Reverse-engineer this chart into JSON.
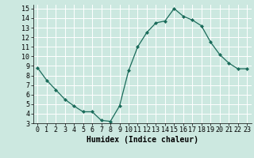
{
  "x": [
    0,
    1,
    2,
    3,
    4,
    5,
    6,
    7,
    8,
    9,
    10,
    11,
    12,
    13,
    14,
    15,
    16,
    17,
    18,
    19,
    20,
    21,
    22,
    23
  ],
  "y": [
    8.8,
    7.5,
    6.5,
    5.5,
    4.8,
    4.2,
    4.2,
    3.3,
    3.2,
    4.8,
    8.5,
    11.0,
    12.5,
    13.5,
    13.7,
    15.0,
    14.2,
    13.8,
    13.2,
    11.5,
    10.2,
    9.3,
    8.7,
    8.7
  ],
  "xlabel": "Humidex (Indice chaleur)",
  "xlim": [
    -0.5,
    23.5
  ],
  "ylim": [
    3,
    15.4
  ],
  "yticks": [
    3,
    4,
    5,
    6,
    7,
    8,
    9,
    10,
    11,
    12,
    13,
    14,
    15
  ],
  "xticks": [
    0,
    1,
    2,
    3,
    4,
    5,
    6,
    7,
    8,
    9,
    10,
    11,
    12,
    13,
    14,
    15,
    16,
    17,
    18,
    19,
    20,
    21,
    22,
    23
  ],
  "line_color": "#1a6b5a",
  "marker_color": "#1a6b5a",
  "bg_color": "#cce8e0",
  "grid_color": "#ffffff",
  "xlabel_fontsize": 7,
  "tick_fontsize": 6
}
